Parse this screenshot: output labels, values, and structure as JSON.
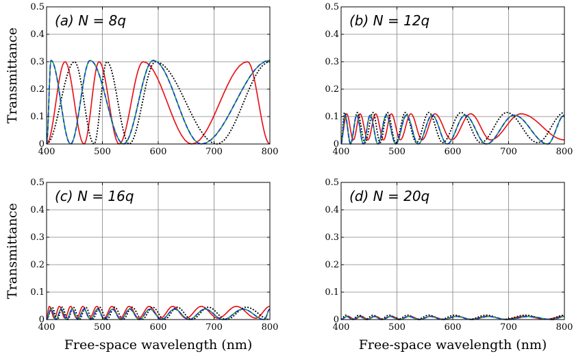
{
  "colors": {
    "red": "#e8141b",
    "black": "#000000",
    "blue": "#1a3fd6",
    "green": "#1aa33a"
  },
  "chart_data": [
    {
      "type": "line",
      "title": "(a) N = 8q",
      "xlabel": "",
      "ylabel": "Transmittance",
      "xlim": [
        400,
        800
      ],
      "ylim": [
        0,
        0.5
      ],
      "xticks": [
        "400",
        "500",
        "600",
        "700",
        "800"
      ],
      "yticks": [
        "0",
        "0.1",
        "0.2",
        "0.3",
        "0.4",
        "0.5"
      ],
      "grid": true,
      "series": [
        {
          "color": "red",
          "style": "solid",
          "min": 0.0,
          "max": 0.3,
          "anchors": [
            400,
            433,
            467,
            494,
            530,
            573,
            660,
            760,
            800
          ]
        },
        {
          "color": "black",
          "style": "dotted",
          "min": 0.0,
          "max": 0.3,
          "anchors": [
            400,
            450,
            485,
            508,
            548,
            595,
            705,
            800
          ]
        },
        {
          "color": "green",
          "style": "solid",
          "min": 0.0,
          "max": 0.305,
          "anchors": [
            400,
            408,
            443,
            478,
            538,
            591,
            677,
            800
          ]
        },
        {
          "color": "blue",
          "style": "dashed",
          "min": 0.0,
          "max": 0.305,
          "anchors": [
            400,
            408,
            443,
            478,
            538,
            591,
            677,
            800
          ]
        }
      ]
    },
    {
      "type": "line",
      "title": "(b) N = 12q",
      "xlabel": "",
      "ylabel": "",
      "xlim": [
        400,
        800
      ],
      "ylim": [
        0,
        0.5
      ],
      "xticks": [
        "400",
        "500",
        "600",
        "700",
        "800"
      ],
      "yticks": [
        "0",
        "0.1",
        "0.2",
        "0.3",
        "0.4",
        "0.5"
      ],
      "grid": true,
      "series": [
        {
          "color": "red",
          "style": "solid",
          "min": 0.015,
          "max": 0.11,
          "anchors": [
            400,
            410,
            422,
            434,
            448,
            462,
            476,
            490,
            506,
            525,
            545,
            568,
            598,
            632,
            668,
            722,
            800
          ]
        },
        {
          "color": "black",
          "style": "dotted",
          "min": 0.005,
          "max": 0.115,
          "anchors": [
            400,
            406,
            417,
            429,
            443,
            457,
            470,
            483,
            498,
            515,
            535,
            557,
            582,
            615,
            650,
            697,
            752,
            800
          ]
        },
        {
          "color": "green",
          "style": "solid",
          "min": 0.0,
          "max": 0.105,
          "anchors": [
            400,
            407,
            417,
            428,
            440,
            452,
            466,
            481,
            498,
            517,
            538,
            563,
            590,
            622,
            660,
            710,
            770,
            800
          ]
        },
        {
          "color": "blue",
          "style": "dashed",
          "min": 0.0,
          "max": 0.105,
          "anchors": [
            400,
            407,
            417,
            428,
            440,
            452,
            466,
            481,
            498,
            517,
            538,
            563,
            590,
            622,
            660,
            710,
            770,
            800
          ]
        }
      ]
    },
    {
      "type": "line",
      "title": "(c) N = 16q",
      "xlabel": "Free-space wavelength  (nm)",
      "ylabel": "Transmittance",
      "xlim": [
        400,
        800
      ],
      "ylim": [
        0,
        0.5
      ],
      "xticks": [
        "400",
        "500",
        "600",
        "700",
        "800"
      ],
      "yticks": [
        "0",
        "0.1",
        "0.2",
        "0.3",
        "0.4",
        "0.5"
      ],
      "grid": true,
      "series": [
        {
          "color": "red",
          "style": "solid",
          "min": 0.005,
          "max": 0.048,
          "anchors": [
            400,
            405,
            414,
            423,
            433,
            443,
            454,
            465,
            477,
            490,
            503,
            517,
            532,
            548,
            565,
            584,
            604,
            626,
            650,
            677,
            707,
            740,
            775,
            800
          ]
        },
        {
          "color": "black",
          "style": "dotted",
          "min": 0.0,
          "max": 0.045,
          "anchors": [
            400,
            410,
            419,
            428,
            438,
            448,
            459,
            470,
            482,
            495,
            508,
            522,
            537,
            553,
            571,
            590,
            611,
            634,
            660,
            690,
            722,
            758,
            800
          ]
        },
        {
          "color": "green",
          "style": "solid",
          "min": 0.0,
          "max": 0.038,
          "anchors": [
            400,
            408,
            417,
            426,
            436,
            446,
            456,
            467,
            479,
            491,
            504,
            518,
            533,
            549,
            566,
            585,
            606,
            629,
            655,
            684,
            716,
            752,
            790,
            800
          ]
        },
        {
          "color": "blue",
          "style": "dashed",
          "min": 0.0,
          "max": 0.038,
          "anchors": [
            400,
            408,
            417,
            426,
            436,
            446,
            456,
            467,
            479,
            491,
            504,
            518,
            533,
            549,
            566,
            585,
            606,
            629,
            655,
            684,
            716,
            752,
            790,
            800
          ]
        }
      ]
    },
    {
      "type": "line",
      "title": "(d) N = 20q",
      "xlabel": "Free-space wavelength  (nm)",
      "ylabel": "",
      "xlim": [
        400,
        800
      ],
      "ylim": [
        0,
        0.5
      ],
      "xticks": [
        "400",
        "500",
        "600",
        "700",
        "800"
      ],
      "yticks": [
        "0",
        "0.1",
        "0.2",
        "0.3",
        "0.4",
        "0.5"
      ],
      "grid": true,
      "series": [
        {
          "color": "red",
          "style": "solid",
          "min": 0.001,
          "max": 0.012,
          "anchors": [
            400,
            412,
            424,
            436,
            448,
            461,
            475,
            490,
            506,
            523,
            541,
            561,
            583,
            607,
            633,
            662,
            694,
            729,
            767,
            800
          ]
        },
        {
          "color": "black",
          "style": "dotted",
          "min": 0.001,
          "max": 0.016,
          "anchors": [
            400,
            408,
            420,
            432,
            444,
            457,
            471,
            486,
            502,
            519,
            537,
            557,
            579,
            603,
            630,
            660,
            693,
            730,
            770,
            800
          ]
        },
        {
          "color": "green",
          "style": "solid",
          "min": 0.0,
          "max": 0.011,
          "anchors": [
            400,
            410,
            421,
            433,
            446,
            459,
            473,
            488,
            504,
            521,
            540,
            560,
            582,
            607,
            634,
            664,
            698,
            736,
            778,
            800
          ]
        },
        {
          "color": "blue",
          "style": "dashed",
          "min": 0.0,
          "max": 0.011,
          "anchors": [
            400,
            410,
            421,
            433,
            446,
            459,
            473,
            488,
            504,
            521,
            540,
            560,
            582,
            607,
            634,
            664,
            698,
            736,
            778,
            800
          ]
        }
      ]
    }
  ]
}
